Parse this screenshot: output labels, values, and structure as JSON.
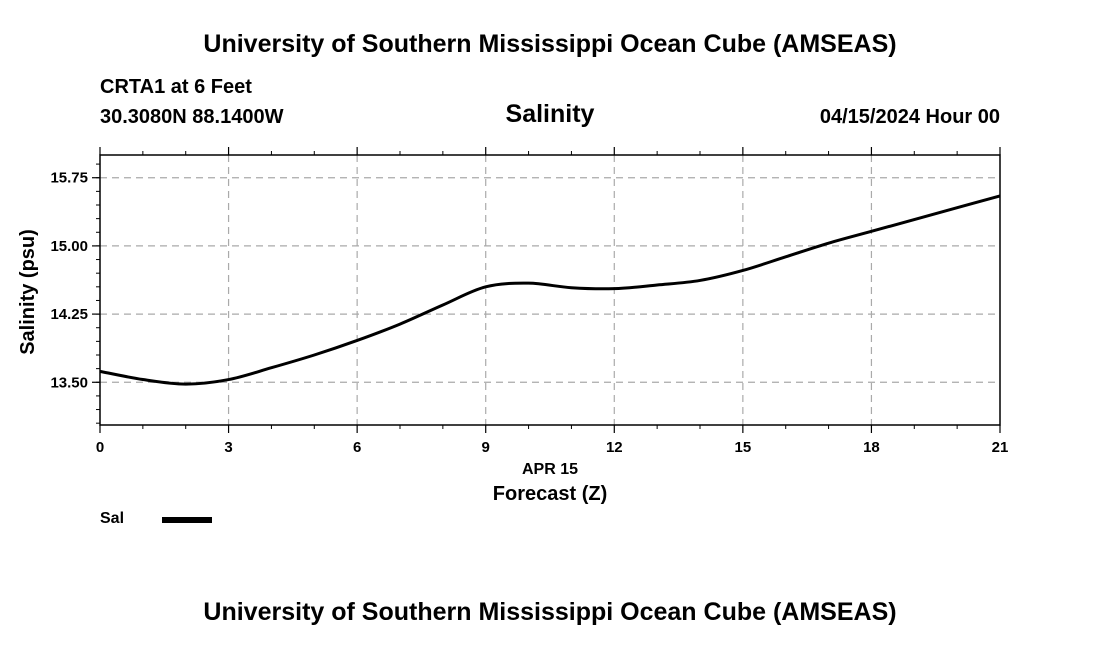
{
  "header": {
    "title": "University of Southern Mississippi Ocean Cube (AMSEAS)",
    "station": "CRTA1 at 6 Feet",
    "coordinates": "30.3080N  88.1400W",
    "chart_title": "Salinity",
    "datetime": "04/15/2024 Hour 00"
  },
  "footer": {
    "title": "University of Southern Mississippi Ocean Cube (AMSEAS)"
  },
  "legend": {
    "label": "Sal"
  },
  "chart_data": {
    "type": "line",
    "title": "Salinity",
    "xlabel": "Forecast (Z)",
    "xsublabel": "APR 15",
    "ylabel": "Salinity (psu)",
    "xlim": [
      0,
      21
    ],
    "ylim": [
      13.03,
      16.0
    ],
    "xticks": [
      0,
      3,
      6,
      9,
      12,
      15,
      18,
      21
    ],
    "yticks": [
      13.5,
      14.25,
      15.0,
      15.75
    ],
    "ytick_labels": [
      "13.50",
      "14.25",
      "15.00",
      "15.75"
    ],
    "grid": true,
    "series": [
      {
        "name": "Sal",
        "color": "#000000",
        "x": [
          0,
          1,
          2,
          3,
          4,
          5,
          6,
          7,
          8,
          9,
          10,
          11,
          12,
          13,
          14,
          15,
          16,
          17,
          18,
          19,
          20,
          21
        ],
        "values": [
          13.62,
          13.53,
          13.48,
          13.53,
          13.66,
          13.8,
          13.96,
          14.14,
          14.35,
          14.55,
          14.59,
          14.54,
          14.53,
          14.57,
          14.62,
          14.73,
          14.88,
          15.03,
          15.16,
          15.29,
          15.42,
          15.55
        ]
      }
    ]
  }
}
